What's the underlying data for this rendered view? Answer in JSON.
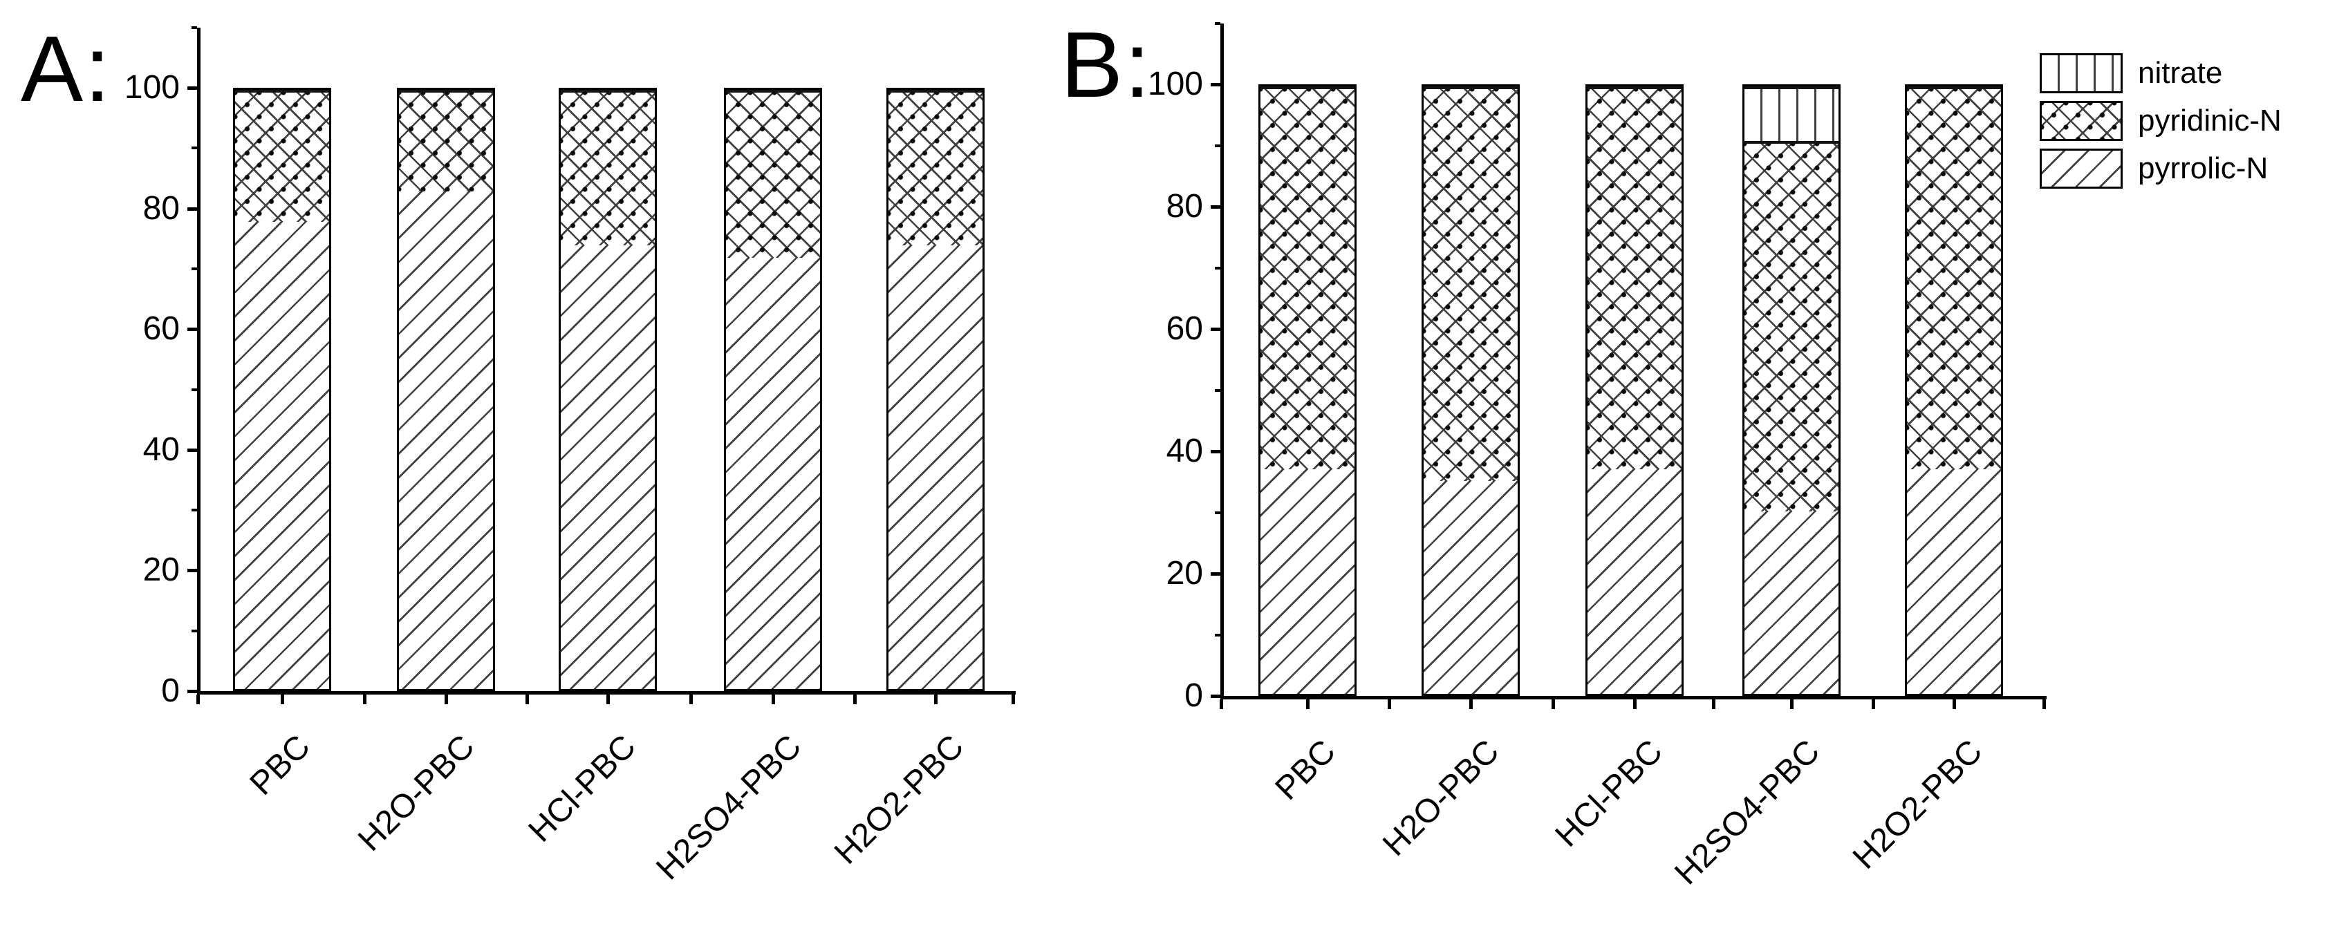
{
  "figure": {
    "background": "#ffffff",
    "axis_color": "#000000",
    "hatch_color": "#3f3f3f"
  },
  "legend": {
    "position": "top-right",
    "entries": [
      {
        "label": "nitrate",
        "pattern": "vertical-lines"
      },
      {
        "label": "pyridinic-N",
        "pattern": "crosshatch"
      },
      {
        "label": "pyrrolic-N",
        "pattern": "diagonal-lines"
      }
    ]
  },
  "chart_data": [
    {
      "type": "bar",
      "stacked": true,
      "panel_label": "A:",
      "title": "",
      "xlabel": "",
      "ylabel": "",
      "categories": [
        "PBC",
        "H2O-PBC",
        "HCl-PBC",
        "H2SO4-PBC",
        "H2O2-PBC"
      ],
      "series": [
        {
          "name": "pyrrolic-N",
          "pattern": "diagonal-lines",
          "values": [
            78,
            83,
            74,
            72,
            74
          ]
        },
        {
          "name": "pyridinic-N",
          "pattern": "crosshatch",
          "values": [
            22,
            17,
            26,
            28,
            26
          ]
        },
        {
          "name": "nitrate",
          "pattern": "vertical-lines",
          "values": [
            0,
            0,
            0,
            0,
            0
          ]
        }
      ],
      "ylim": [
        0,
        110
      ],
      "yticks": [
        0,
        20,
        40,
        60,
        80,
        100
      ],
      "minor_tick_step": 10,
      "grid": false,
      "legend": false
    },
    {
      "type": "bar",
      "stacked": true,
      "panel_label": "B:",
      "title": "",
      "xlabel": "",
      "ylabel": "",
      "categories": [
        "PBC",
        "H2O-PBC",
        "HCl-PBC",
        "H2SO4-PBC",
        "H2O2-PBC"
      ],
      "series": [
        {
          "name": "pyrrolic-N",
          "pattern": "diagonal-lines",
          "values": [
            37,
            35,
            37,
            30,
            37
          ]
        },
        {
          "name": "pyridinic-N",
          "pattern": "crosshatch",
          "values": [
            63,
            65,
            63,
            61,
            63
          ]
        },
        {
          "name": "nitrate",
          "pattern": "vertical-lines",
          "values": [
            0,
            0,
            0,
            9,
            0
          ]
        }
      ],
      "ylim": [
        0,
        110
      ],
      "yticks": [
        0,
        20,
        40,
        60,
        80,
        100
      ],
      "minor_tick_step": 10,
      "grid": false,
      "legend": true
    }
  ]
}
